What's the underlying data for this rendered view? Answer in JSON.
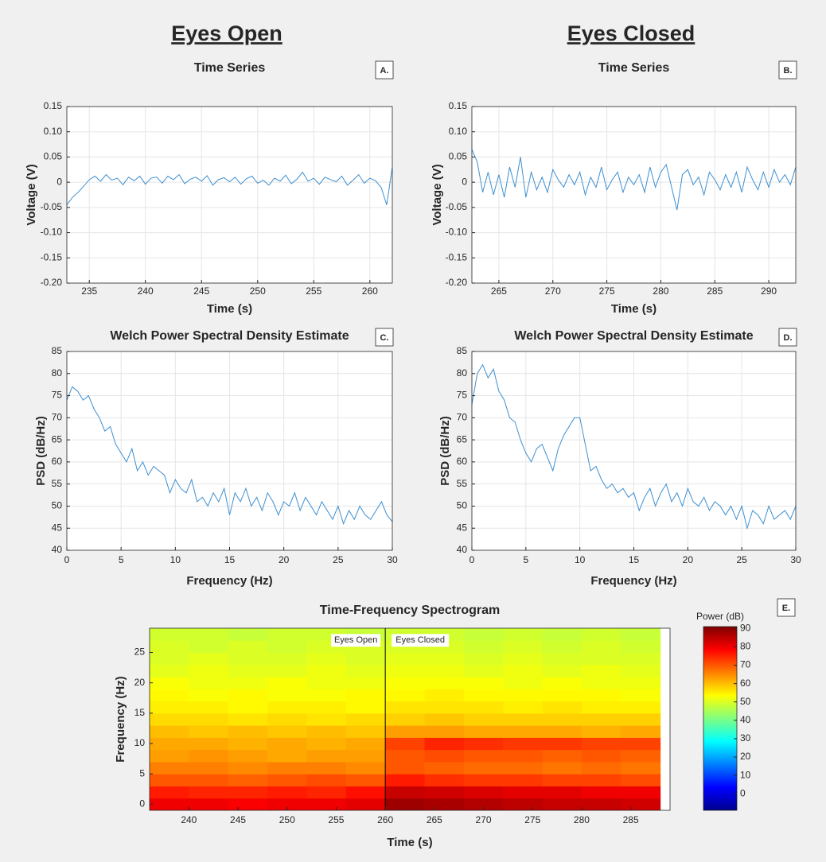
{
  "headers": [
    "Eyes Open",
    "Eyes Closed"
  ],
  "chart_data": [
    {
      "type": "line",
      "title": "Time Series",
      "panel_label": "A.",
      "xlabel": "Time (s)",
      "ylabel": "Voltage (V)",
      "color": "#3d8fd1",
      "grid": true,
      "xlim": [
        233,
        262
      ],
      "xticks": [
        235,
        240,
        245,
        250,
        255,
        260
      ],
      "ylim": [
        -0.2,
        0.15
      ],
      "yticks": [
        0.15,
        {
          "value": 0.1,
          "label": "0.10"
        },
        0.05,
        0,
        -0.05,
        {
          "value": -0.1,
          "label": "-0.10"
        },
        -0.15,
        {
          "value": -0.2,
          "label": "-0.20"
        }
      ],
      "x": [
        233,
        233.5,
        234,
        234.5,
        235,
        235.5,
        236,
        236.5,
        237,
        237.5,
        238,
        238.5,
        239,
        239.5,
        240,
        240.5,
        241,
        241.5,
        242,
        242.5,
        243,
        243.5,
        244,
        244.5,
        245,
        245.5,
        246,
        246.5,
        247,
        247.5,
        248,
        248.5,
        249,
        249.5,
        250,
        250.5,
        251,
        251.5,
        252,
        252.5,
        253,
        253.5,
        254,
        254.5,
        255,
        255.5,
        256,
        256.5,
        257,
        257.5,
        258,
        258.5,
        259,
        259.5,
        260,
        260.5,
        261,
        261.5,
        262
      ],
      "values": [
        -0.045,
        -0.03,
        -0.02,
        -0.008,
        0.005,
        0.012,
        0.002,
        0.015,
        0.004,
        0.008,
        -0.005,
        0.01,
        0.003,
        0.012,
        -0.004,
        0.008,
        0.01,
        -0.002,
        0.012,
        0.005,
        0.015,
        -0.003,
        0.006,
        0.01,
        0.002,
        0.013,
        -0.006,
        0.005,
        0.009,
        0.001,
        0.01,
        -0.004,
        0.007,
        0.012,
        -0.002,
        0.004,
        -0.006,
        0.008,
        0.002,
        0.014,
        -0.003,
        0.006,
        0.02,
        0.002,
        0.008,
        -0.004,
        0.01,
        0.005,
        0.001,
        0.012,
        -0.006,
        0.004,
        0.015,
        -0.002,
        0.008,
        0.003,
        -0.01,
        -0.045,
        0.03
      ]
    },
    {
      "type": "line",
      "title": "Time Series",
      "panel_label": "B.",
      "xlabel": "Time (s)",
      "ylabel": "Voltage (V)",
      "color": "#3d8fd1",
      "grid": true,
      "xlim": [
        262.5,
        292.5
      ],
      "xticks": [
        265,
        270,
        275,
        280,
        285,
        290
      ],
      "ylim": [
        -0.2,
        0.15
      ],
      "yticks": [
        0.15,
        {
          "value": 0.1,
          "label": "0.10"
        },
        0.05,
        0,
        -0.05,
        {
          "value": -0.1,
          "label": "-0.10"
        },
        -0.15,
        {
          "value": -0.2,
          "label": "-0.20"
        }
      ],
      "x": [
        262.5,
        263,
        263.5,
        264,
        264.5,
        265,
        265.5,
        266,
        266.5,
        267,
        267.5,
        268,
        268.5,
        269,
        269.5,
        270,
        270.5,
        271,
        271.5,
        272,
        272.5,
        273,
        273.5,
        274,
        274.5,
        275,
        275.5,
        276,
        276.5,
        277,
        277.5,
        278,
        278.5,
        279,
        279.5,
        280,
        280.5,
        281,
        281.5,
        282,
        282.5,
        283,
        283.5,
        284,
        284.5,
        285,
        285.5,
        286,
        286.5,
        287,
        287.5,
        288,
        288.5,
        289,
        289.5,
        290,
        290.5,
        291,
        291.5,
        292,
        292.5
      ],
      "values": [
        0.065,
        0.04,
        -0.02,
        0.02,
        -0.025,
        0.015,
        -0.03,
        0.03,
        -0.01,
        0.05,
        -0.03,
        0.02,
        -0.015,
        0.01,
        -0.02,
        0.025,
        0.005,
        -0.01,
        0.015,
        -0.005,
        0.02,
        -0.025,
        0.01,
        -0.01,
        0.03,
        -0.015,
        0.005,
        0.02,
        -0.02,
        0.01,
        -0.005,
        0.015,
        -0.02,
        0.03,
        -0.01,
        0.02,
        0.035,
        -0.01,
        -0.055,
        0.015,
        0.025,
        -0.005,
        0.01,
        -0.025,
        0.02,
        0.005,
        -0.015,
        0.015,
        -0.01,
        0.02,
        -0.02,
        0.03,
        0.005,
        -0.015,
        0.02,
        -0.01,
        0.025,
        0,
        0.015,
        -0.005,
        0.03
      ]
    },
    {
      "type": "line",
      "title": "Welch Power Spectral Density Estimate",
      "panel_label": "C.",
      "xlabel": "Frequency (Hz)",
      "ylabel": "PSD (dB/Hz)",
      "color": "#3d8fd1",
      "grid": true,
      "xlim": [
        0,
        30
      ],
      "xticks": [
        0,
        5,
        10,
        15,
        20,
        25,
        30
      ],
      "ylim": [
        40,
        85
      ],
      "yticks": [
        40,
        45,
        50,
        55,
        60,
        65,
        70,
        75,
        80,
        85
      ],
      "x": [
        0,
        0.5,
        1,
        1.5,
        2,
        2.5,
        3,
        3.5,
        4,
        4.5,
        5,
        5.5,
        6,
        6.5,
        7,
        7.5,
        8,
        8.5,
        9,
        9.5,
        10,
        10.5,
        11,
        11.5,
        12,
        12.5,
        13,
        13.5,
        14,
        14.5,
        15,
        15.5,
        16,
        16.5,
        17,
        17.5,
        18,
        18.5,
        19,
        19.5,
        20,
        20.5,
        21,
        21.5,
        22,
        22.5,
        23,
        23.5,
        24,
        24.5,
        25,
        25.5,
        26,
        26.5,
        27,
        27.5,
        28,
        28.5,
        29,
        29.5,
        30
      ],
      "values": [
        74,
        77,
        76,
        74,
        75,
        72,
        70,
        67,
        68,
        64,
        62,
        60,
        63,
        58,
        60,
        57,
        59,
        58,
        57,
        53,
        56,
        54,
        53,
        56,
        51,
        52,
        50,
        53,
        51,
        54,
        48,
        53,
        51,
        54,
        50,
        52,
        49,
        53,
        51,
        48,
        51,
        50,
        53,
        49,
        52,
        50,
        48,
        51,
        49,
        47,
        50,
        46,
        49,
        47,
        50,
        48,
        47,
        49,
        51,
        48,
        46.5
      ]
    },
    {
      "type": "line",
      "title": "Welch Power Spectral Density Estimate",
      "panel_label": "D.",
      "xlabel": "Frequency (Hz)",
      "ylabel": "PSD (dB/Hz)",
      "color": "#3d8fd1",
      "grid": true,
      "xlim": [
        0,
        30
      ],
      "xticks": [
        0,
        5,
        10,
        15,
        20,
        25,
        30
      ],
      "ylim": [
        40,
        85
      ],
      "yticks": [
        40,
        45,
        50,
        55,
        60,
        65,
        70,
        75,
        80,
        85
      ],
      "x": [
        0,
        0.5,
        1,
        1.5,
        2,
        2.5,
        3,
        3.5,
        4,
        4.5,
        5,
        5.5,
        6,
        6.5,
        7,
        7.5,
        8,
        8.5,
        9,
        9.5,
        10,
        10.5,
        11,
        11.5,
        12,
        12.5,
        13,
        13.5,
        14,
        14.5,
        15,
        15.5,
        16,
        16.5,
        17,
        17.5,
        18,
        18.5,
        19,
        19.5,
        20,
        20.5,
        21,
        21.5,
        22,
        22.5,
        23,
        23.5,
        24,
        24.5,
        25,
        25.5,
        26,
        26.5,
        27,
        27.5,
        28,
        28.5,
        29,
        29.5,
        30
      ],
      "values": [
        73,
        80,
        82,
        79,
        81,
        76,
        74,
        70,
        69,
        65,
        62,
        60,
        63,
        64,
        61,
        58,
        63,
        66,
        68,
        70,
        70,
        64,
        58,
        59,
        56,
        54,
        55,
        53,
        54,
        52,
        53,
        49,
        52,
        54,
        50,
        53,
        55,
        51,
        53,
        50,
        54,
        51,
        50,
        52,
        49,
        51,
        50,
        48,
        50,
        47,
        50,
        45,
        49,
        48,
        46,
        50,
        47,
        48,
        49,
        47,
        50
      ]
    },
    {
      "type": "heatmap",
      "title": "Time-Frequency Spectrogram",
      "panel_label": "E.",
      "xlabel": "Time (s)",
      "ylabel": "Frequency (Hz)",
      "colormap": "jet",
      "colorbar_label": "Power (dB)",
      "clim": [
        -9,
        91
      ],
      "cticks": [
        0,
        10,
        20,
        30,
        40,
        50,
        60,
        70,
        80,
        90
      ],
      "xlim": [
        236,
        289
      ],
      "xticks": [
        240,
        245,
        250,
        255,
        260,
        265,
        270,
        275,
        280,
        285
      ],
      "ylim": [
        -1,
        29
      ],
      "yticks": [
        0,
        5,
        10,
        15,
        20,
        25
      ],
      "divider_x": 260,
      "annotations": [
        "Eyes Open",
        "Eyes Closed"
      ],
      "x": [
        238,
        242,
        246,
        250,
        254,
        258,
        262,
        266,
        270,
        274,
        278,
        282,
        286
      ],
      "y": [
        0,
        2,
        4,
        6,
        8,
        10,
        12,
        14,
        16,
        18,
        20,
        22,
        24,
        26,
        28
      ],
      "z": [
        [
          80,
          80,
          79,
          80,
          80,
          81,
          88,
          87,
          86,
          85,
          84,
          84,
          83
        ],
        [
          76,
          75,
          75,
          76,
          75,
          77,
          84,
          83,
          82,
          81,
          81,
          80,
          80
        ],
        [
          70,
          70,
          69,
          70,
          71,
          70,
          76,
          74,
          73,
          73,
          72,
          72,
          71
        ],
        [
          66,
          66,
          65,
          66,
          66,
          65,
          70,
          69,
          68,
          68,
          67,
          68,
          67
        ],
        [
          63,
          64,
          63,
          62,
          63,
          63,
          70,
          71,
          70,
          70,
          69,
          70,
          69
        ],
        [
          62,
          62,
          61,
          62,
          61,
          62,
          72,
          75,
          74,
          73,
          73,
          72,
          72
        ],
        [
          60,
          59,
          60,
          59,
          60,
          59,
          63,
          63,
          62,
          62,
          62,
          61,
          62
        ],
        [
          57,
          57,
          56,
          57,
          56,
          57,
          58,
          59,
          58,
          58,
          58,
          58,
          58
        ],
        [
          55,
          55,
          54,
          55,
          55,
          54,
          56,
          56,
          56,
          55,
          56,
          55,
          55
        ],
        [
          54,
          53,
          54,
          53,
          53,
          54,
          54,
          55,
          54,
          54,
          54,
          54,
          53
        ],
        [
          53,
          52,
          52,
          53,
          52,
          52,
          53,
          53,
          53,
          52,
          53,
          52,
          52
        ],
        [
          51,
          52,
          51,
          51,
          52,
          51,
          52,
          52,
          51,
          52,
          51,
          52,
          51
        ],
        [
          50,
          51,
          50,
          50,
          51,
          50,
          51,
          51,
          50,
          51,
          50,
          50,
          50
        ],
        [
          50,
          49,
          50,
          49,
          50,
          50,
          50,
          50,
          49,
          50,
          49,
          50,
          49
        ],
        [
          49,
          49,
          48,
          49,
          49,
          48,
          49,
          49,
          48,
          49,
          48,
          49,
          48
        ]
      ]
    }
  ]
}
